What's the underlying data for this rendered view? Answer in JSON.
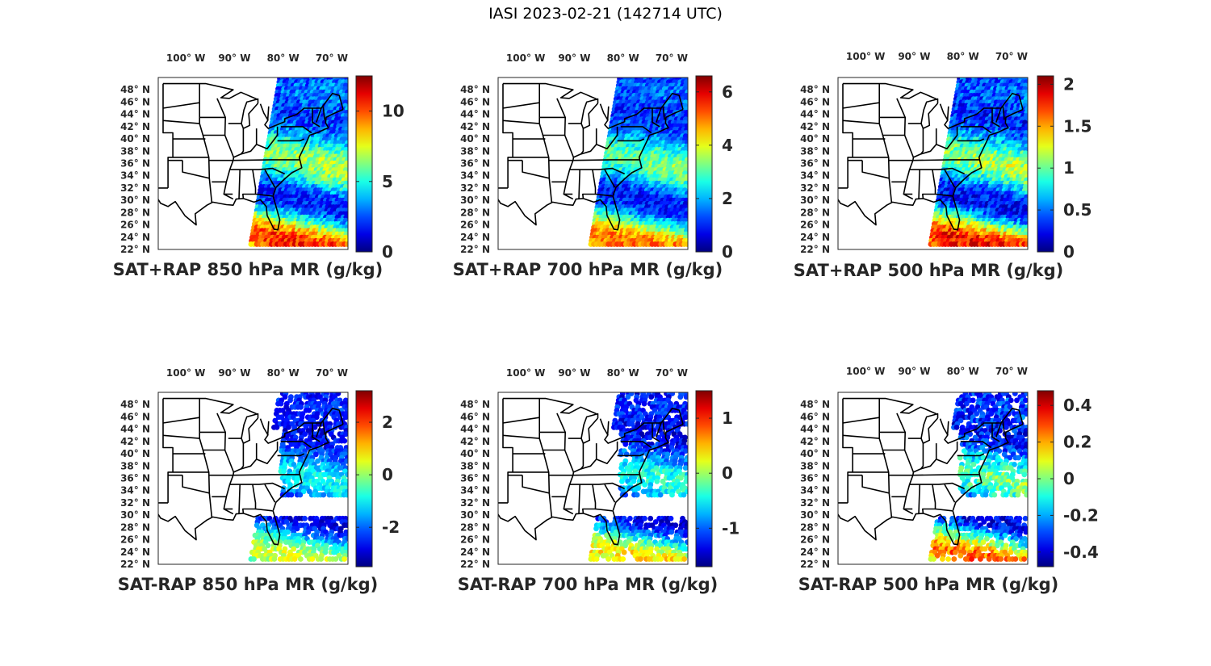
{
  "figure": {
    "title": "IASI 2023-02-21 (142714 UTC)",
    "colormap": "jet",
    "lon_ticks": [
      "100° W",
      "90° W",
      "80° W",
      "70° W"
    ],
    "lat_ticks": [
      "48° N",
      "46° N",
      "44° N",
      "42° N",
      "40° N",
      "38° N",
      "36° N",
      "34° N",
      "32° N",
      "30° N",
      "28° N",
      "26° N",
      "24° N",
      "22° N"
    ]
  },
  "chart_data": [
    {
      "type": "heatmap",
      "title": "SAT+RAP 850 hPa MR (g/kg)",
      "colorbar": {
        "range": [
          0,
          12.5
        ],
        "ticks": [
          0,
          5,
          10
        ],
        "tick_labels": [
          "0",
          "5",
          "10"
        ]
      },
      "swath_value_range": [
        1,
        11.5
      ],
      "lon_range": [
        -105,
        -66
      ],
      "lat_range": [
        22,
        50
      ]
    },
    {
      "type": "heatmap",
      "title": "SAT+RAP 700 hPa MR (g/kg)",
      "colorbar": {
        "range": [
          0,
          6.6
        ],
        "ticks": [
          0,
          2,
          4,
          6
        ],
        "tick_labels": [
          "0",
          "2",
          "4",
          "6"
        ]
      },
      "swath_value_range": [
        0.5,
        5.5
      ],
      "lon_range": [
        -105,
        -66
      ],
      "lat_range": [
        22,
        50
      ]
    },
    {
      "type": "heatmap",
      "title": "SAT+RAP 500 hPa MR (g/kg)",
      "colorbar": {
        "range": [
          0,
          2.1
        ],
        "ticks": [
          0,
          0.5,
          1,
          1.5,
          2
        ],
        "tick_labels": [
          "0",
          "0.5",
          "1",
          "1.5",
          "2"
        ]
      },
      "swath_value_range": [
        0.1,
        2.0
      ],
      "lon_range": [
        -105,
        -66
      ],
      "lat_range": [
        22,
        50
      ]
    },
    {
      "type": "heatmap",
      "title": "SAT-RAP 850 hPa MR (g/kg)",
      "colorbar": {
        "range": [
          -3.5,
          3.2
        ],
        "ticks": [
          -2,
          0,
          2
        ],
        "tick_labels": [
          "-2",
          "0",
          "2"
        ]
      },
      "swath_value_range": [
        -3.2,
        0.8
      ],
      "lon_range": [
        -105,
        -66
      ],
      "lat_range": [
        22,
        50
      ]
    },
    {
      "type": "heatmap",
      "title": "SAT-RAP 700 hPa MR (g/kg)",
      "colorbar": {
        "range": [
          -1.7,
          1.5
        ],
        "ticks": [
          -1,
          0,
          1
        ],
        "tick_labels": [
          "-1",
          "0",
          "1"
        ]
      },
      "swath_value_range": [
        -1.6,
        0.6
      ],
      "lon_range": [
        -105,
        -66
      ],
      "lat_range": [
        22,
        50
      ]
    },
    {
      "type": "heatmap",
      "title": "SAT-RAP 500 hPa MR (g/kg)",
      "colorbar": {
        "range": [
          -0.48,
          0.48
        ],
        "ticks": [
          -0.4,
          -0.2,
          0,
          0.2,
          0.4
        ],
        "tick_labels": [
          "-0.4",
          "-0.2",
          "0",
          "0.2",
          "0.4"
        ]
      },
      "swath_value_range": [
        -0.45,
        0.35
      ],
      "lon_range": [
        -105,
        -66
      ],
      "lat_range": [
        22,
        50
      ]
    }
  ]
}
